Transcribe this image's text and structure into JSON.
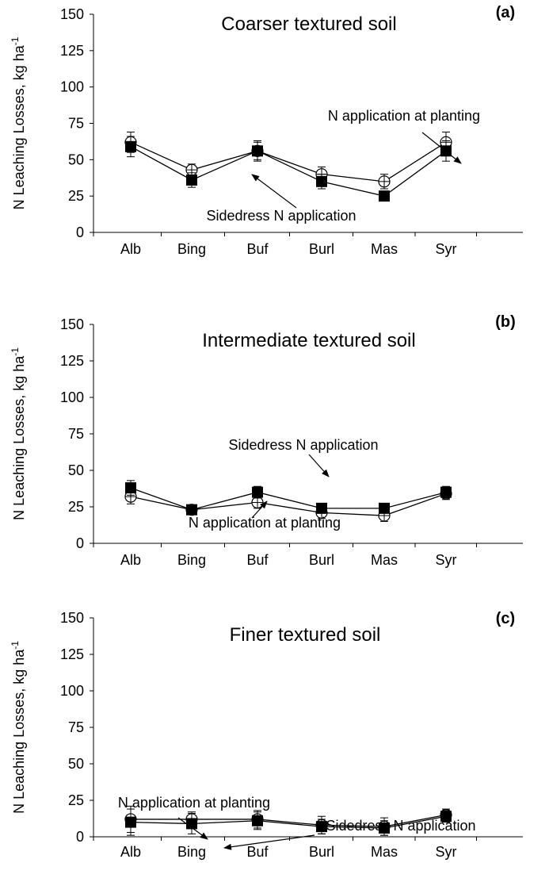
{
  "chart_data": [
    {
      "type": "line",
      "panel_label": "(a)",
      "title": "Coarser textured soil",
      "xlabel": "",
      "ylabel": "N Leaching Losses, kg ha",
      "ylabel_sup": "-1",
      "categories": [
        "Alb",
        "Bing",
        "Buf",
        "Burl",
        "Mas",
        "Syr"
      ],
      "ylim": [
        0,
        150
      ],
      "yticks": [
        0,
        25,
        50,
        75,
        100,
        125,
        150
      ],
      "grid": false,
      "series": [
        {
          "marker": "open-circle",
          "values": [
            62,
            43,
            56,
            40,
            35,
            62
          ],
          "errors": [
            7,
            4,
            6,
            5,
            5,
            7
          ]
        },
        {
          "marker": "filled-square",
          "values": [
            59,
            36,
            56,
            35,
            25,
            56
          ],
          "errors": [
            7,
            5,
            7,
            5,
            2,
            7
          ]
        }
      ],
      "annotations": [
        {
          "text": "N application at planting",
          "series": 0
        },
        {
          "text": "Sidedress N application",
          "series": 1
        }
      ]
    },
    {
      "type": "line",
      "panel_label": "(b)",
      "title": "Intermediate textured soil",
      "xlabel": "",
      "ylabel": "N Leaching Losses, kg ha",
      "ylabel_sup": "-1",
      "categories": [
        "Alb",
        "Bing",
        "Buf",
        "Burl",
        "Mas",
        "Syr"
      ],
      "ylim": [
        0,
        150
      ],
      "yticks": [
        0,
        25,
        50,
        75,
        100,
        125,
        150
      ],
      "grid": false,
      "series": [
        {
          "marker": "open-circle",
          "values": [
            32,
            23,
            28,
            21,
            19,
            34
          ],
          "errors": [
            5,
            2,
            4,
            4,
            4,
            4
          ]
        },
        {
          "marker": "filled-square",
          "values": [
            38,
            23,
            35,
            24,
            24,
            35
          ],
          "errors": [
            5,
            2,
            4,
            3,
            3,
            4
          ]
        }
      ],
      "annotations": [
        {
          "text": "Sidedress N application",
          "series": 1
        },
        {
          "text": "N application at planting",
          "series": 0
        }
      ]
    },
    {
      "type": "line",
      "panel_label": "(c)",
      "title": "Finer textured soil",
      "xlabel": "",
      "ylabel": "N Leaching Losses, kg ha",
      "ylabel_sup": "-1",
      "categories": [
        "Alb",
        "Bing",
        "Buf",
        "Burl",
        "Mas",
        "Syr"
      ],
      "ylim": [
        0,
        150
      ],
      "yticks": [
        0,
        25,
        50,
        75,
        100,
        125,
        150
      ],
      "grid": false,
      "series": [
        {
          "marker": "open-circle",
          "values": [
            12,
            12,
            12,
            8,
            7,
            15
          ],
          "errors": [
            9,
            5,
            6,
            6,
            6,
            4
          ]
        },
        {
          "marker": "filled-square",
          "values": [
            10,
            9,
            11,
            7,
            6,
            14
          ],
          "errors": [
            9,
            7,
            6,
            5,
            5,
            4
          ]
        }
      ],
      "annotations": [
        {
          "text": "N application at planting",
          "series": 0
        },
        {
          "text": "Sidedress N application",
          "series": 1
        }
      ]
    }
  ]
}
